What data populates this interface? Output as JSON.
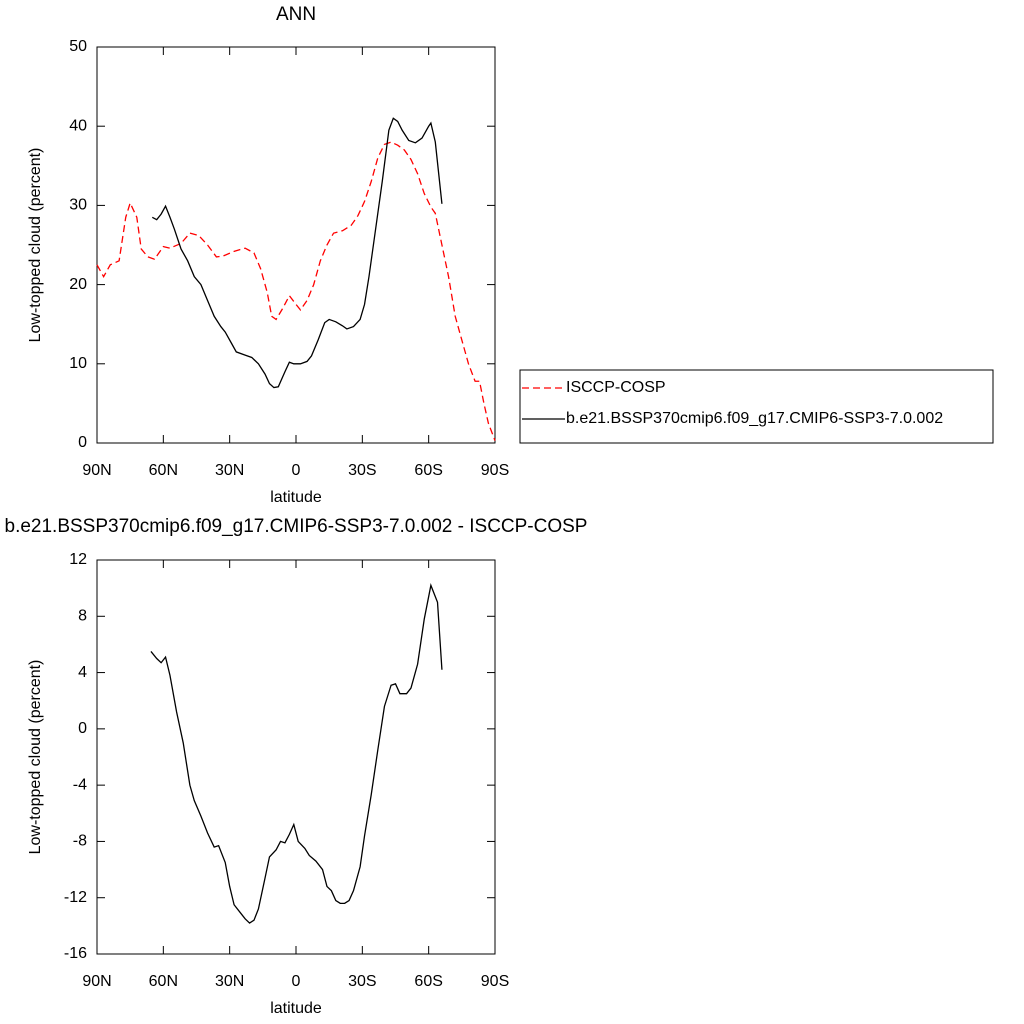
{
  "chart_data": [
    {
      "type": "line",
      "title": "ANN",
      "xlabel": "latitude",
      "ylabel": "Low-topped cloud (percent)",
      "xlim": [
        90,
        -90
      ],
      "xticks": [
        {
          "value": 90,
          "label": "90N"
        },
        {
          "value": 60,
          "label": "60N"
        },
        {
          "value": 30,
          "label": "30N"
        },
        0,
        {
          "value": -30,
          "label": "30S"
        },
        {
          "value": -60,
          "label": "60S"
        },
        {
          "value": -90,
          "label": "90S"
        }
      ],
      "ylim": [
        0,
        50
      ],
      "yticks": [
        0,
        10,
        20,
        30,
        40,
        50
      ],
      "legend": "right",
      "series": [
        {
          "name": "ISCCP-COSP",
          "color": "#ff0000",
          "line_style": "dashed",
          "x": [
            90,
            87,
            84,
            80,
            77,
            75,
            72,
            70,
            67,
            64,
            60,
            57,
            52,
            48,
            44,
            40,
            36,
            33,
            28,
            23,
            19,
            16,
            13,
            11,
            9,
            6,
            3,
            0,
            -2,
            -5,
            -8,
            -11,
            -14,
            -17,
            -21,
            -25,
            -28,
            -31,
            -34,
            -37,
            -40,
            -43,
            -46,
            -49,
            -52,
            -55,
            -58,
            -61,
            -63,
            -66,
            -69,
            -72,
            -75,
            -78,
            -81,
            -83,
            -85,
            -87,
            -90
          ],
          "values": [
            22.5,
            21,
            22.5,
            23,
            28.5,
            30.3,
            28.5,
            24.5,
            23.5,
            23.2,
            24.8,
            24.6,
            25.2,
            26.5,
            26.2,
            25,
            23.5,
            23.6,
            24.2,
            24.6,
            24,
            22,
            19,
            16,
            15.6,
            17,
            18.6,
            17.5,
            16.8,
            18,
            20,
            23,
            25,
            26.5,
            26.8,
            27.5,
            28.7,
            30.5,
            33,
            36,
            37.7,
            38,
            37.6,
            37,
            35.8,
            34,
            31.5,
            29.8,
            29,
            25,
            21,
            16,
            13,
            10,
            7.8,
            7.8,
            5,
            2.5,
            0.3
          ]
        },
        {
          "name": "b.e21.BSSP370cmip6.f09_g17.CMIP6-SSP3-7.0.002",
          "color": "#000000",
          "line_style": "solid",
          "x": [
            65,
            63,
            61,
            59,
            57,
            55,
            52,
            49,
            46,
            43,
            40,
            37,
            34,
            32,
            29,
            27,
            23,
            20,
            17,
            14,
            12,
            10,
            8,
            5,
            3,
            1,
            -2,
            -5,
            -7,
            -10,
            -13,
            -15,
            -18,
            -21,
            -23,
            -26,
            -29,
            -31,
            -33,
            -36,
            -39,
            -42,
            -44,
            -46,
            -48,
            -51,
            -54,
            -57,
            -60,
            -61,
            -63,
            -66
          ],
          "values": [
            28.5,
            28.2,
            28.9,
            29.9,
            28.5,
            27,
            24.5,
            23,
            21,
            20,
            18,
            16,
            14.7,
            14,
            12.5,
            11.5,
            11.1,
            10.8,
            10,
            8.7,
            7.5,
            7,
            7.1,
            9,
            10.2,
            10,
            10,
            10.3,
            11,
            13,
            15.2,
            15.6,
            15.3,
            14.8,
            14.4,
            14.7,
            15.6,
            17.5,
            21,
            27,
            33,
            39.5,
            41,
            40.6,
            39.5,
            38.2,
            37.9,
            38.5,
            40,
            40.4,
            38,
            30.2
          ]
        }
      ]
    },
    {
      "type": "line",
      "title": "b.e21.BSSP370cmip6.f09_g17.CMIP6-SSP3-7.0.002 - ISCCP-COSP",
      "xlabel": "latitude",
      "ylabel": "Low-topped cloud (percent)",
      "xlim": [
        90,
        -90
      ],
      "xticks": [
        {
          "value": 90,
          "label": "90N"
        },
        {
          "value": 60,
          "label": "60N"
        },
        {
          "value": 30,
          "label": "30N"
        },
        0,
        {
          "value": -30,
          "label": "30S"
        },
        {
          "value": -60,
          "label": "60S"
        },
        {
          "value": -90,
          "label": "90S"
        }
      ],
      "ylim": [
        -16,
        12
      ],
      "yticks": [
        -16,
        -12,
        -8,
        -4,
        0,
        4,
        8,
        12
      ],
      "color": "#000000",
      "x": [
        65.6,
        63,
        61,
        59,
        57,
        54,
        51,
        48,
        46,
        43,
        40,
        37,
        35,
        32,
        30,
        28,
        25,
        23,
        21,
        19,
        17,
        14,
        12,
        9,
        7,
        5,
        3,
        1,
        -1,
        -4,
        -6,
        -9,
        -12,
        -14,
        -16,
        -18,
        -20,
        -22,
        -24,
        -26,
        -29,
        -31,
        -34,
        -37,
        -40,
        -43,
        -45,
        -47,
        -50,
        -52,
        -55,
        -58,
        -61,
        -64,
        -66
      ],
      "values": [
        5.5,
        5,
        4.7,
        5.1,
        3.8,
        1.2,
        -1,
        -4,
        -5.1,
        -6.2,
        -7.4,
        -8.4,
        -8.3,
        -9.5,
        -11.2,
        -12.5,
        -13.1,
        -13.5,
        -13.8,
        -13.6,
        -12.8,
        -10.6,
        -9.1,
        -8.6,
        -8,
        -8.1,
        -7.5,
        -6.8,
        -8,
        -8.5,
        -9,
        -9.4,
        -10,
        -11.2,
        -11.5,
        -12.2,
        -12.4,
        -12.4,
        -12.2,
        -11.5,
        -9.8,
        -7.6,
        -4.7,
        -1.5,
        1.6,
        3.1,
        3.2,
        2.5,
        2.5,
        2.9,
        4.6,
        7.8,
        10.2,
        9,
        4.2
      ]
    }
  ]
}
